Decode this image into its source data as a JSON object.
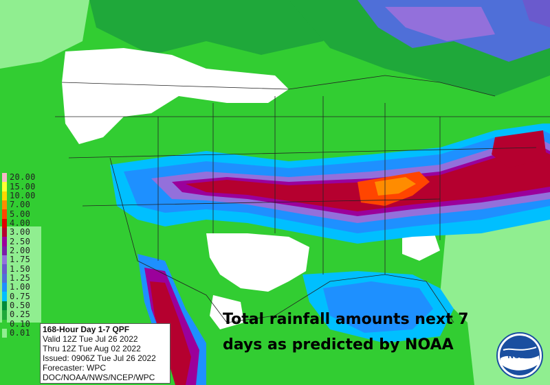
{
  "legend": {
    "items": [
      {
        "label": "20.00",
        "color": "#f7b8c8"
      },
      {
        "label": "15.00",
        "color": "#ffff33"
      },
      {
        "label": "10.00",
        "color": "#ffd700"
      },
      {
        "label": "7.00",
        "color": "#ff8c00"
      },
      {
        "label": "5.00",
        "color": "#ff4500"
      },
      {
        "label": "4.00",
        "color": "#e00000"
      },
      {
        "label": "3.00",
        "color": "#b5002f"
      },
      {
        "label": "2.50",
        "color": "#9b009b"
      },
      {
        "label": "2.00",
        "color": "#7a1fa8"
      },
      {
        "label": "1.75",
        "color": "#9370db"
      },
      {
        "label": "1.50",
        "color": "#6a5acd"
      },
      {
        "label": "1.25",
        "color": "#4f6fd8"
      },
      {
        "label": "1.00",
        "color": "#1e90ff"
      },
      {
        "label": "0.75",
        "color": "#00bfff"
      },
      {
        "label": "0.50",
        "color": "#008b3a"
      },
      {
        "label": "0.25",
        "color": "#1fa83a"
      },
      {
        "label": "0.10",
        "color": "#32cd32"
      },
      {
        "label": "0.01",
        "color": "#90ee90"
      }
    ]
  },
  "info": {
    "title": "168-Hour Day 1-7 QPF",
    "valid": "Valid 12Z Tue Jul 26 2022",
    "thru": "Thru 12Z Tue Aug 02 2022",
    "issued": "Issued: 0906Z Tue Jul 26 2022",
    "forecaster": "Forecaster: WPC",
    "agency": "DOC/NOAA/NWS/NCEP/WPC"
  },
  "caption": {
    "line1": "Total rainfall amounts next 7",
    "line2": "days as predicted by NOAA"
  },
  "logo": {
    "text": "NOAA"
  },
  "colors": {
    "no_rain": "#ffffff",
    "light": "#90ee90",
    "green": "#32cd32",
    "dark_green": "#1fa83a",
    "blue": "#1e90ff",
    "light_blue": "#00bfff",
    "purple": "#9370db",
    "magenta": "#9b009b",
    "red": "#b5002f",
    "orange": "#ff4500",
    "noaa_blue": "#1a4fa0"
  }
}
